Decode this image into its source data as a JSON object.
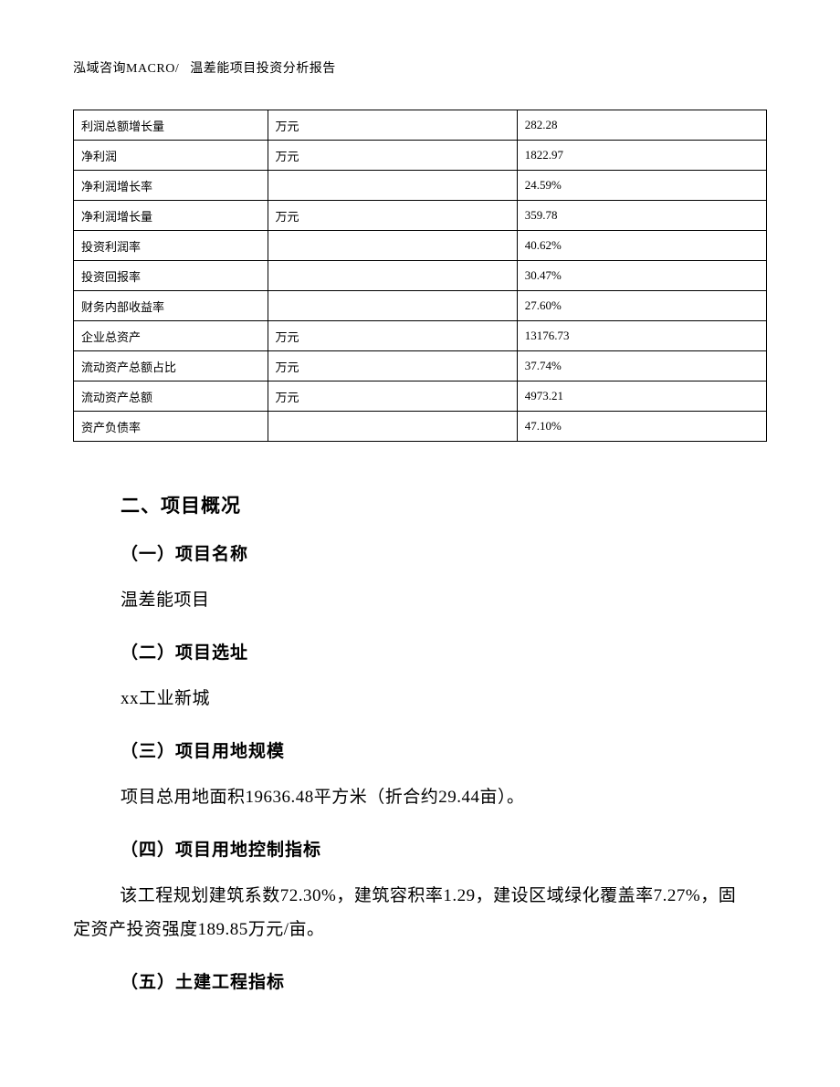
{
  "header": {
    "company": "泓域咨询MACRO/",
    "title": "温差能项目投资分析报告"
  },
  "table": {
    "columns": [
      "name",
      "unit",
      "value"
    ],
    "rows": [
      {
        "name": "利润总额增长量",
        "unit": "万元",
        "value": "282.28"
      },
      {
        "name": "净利润",
        "unit": "万元",
        "value": "1822.97"
      },
      {
        "name": "净利润增长率",
        "unit": "",
        "value": "24.59%"
      },
      {
        "name": "净利润增长量",
        "unit": "万元",
        "value": "359.78"
      },
      {
        "name": "投资利润率",
        "unit": "",
        "value": "40.62%"
      },
      {
        "name": "投资回报率",
        "unit": "",
        "value": "30.47%"
      },
      {
        "name": "财务内部收益率",
        "unit": "",
        "value": "27.60%"
      },
      {
        "name": "企业总资产",
        "unit": "万元",
        "value": "13176.73"
      },
      {
        "name": "流动资产总额占比",
        "unit": "万元",
        "value": "37.74%"
      },
      {
        "name": "流动资产总额",
        "unit": "万元",
        "value": "4973.21"
      },
      {
        "name": "资产负债率",
        "unit": "",
        "value": "47.10%"
      }
    ]
  },
  "section": {
    "title": "二、项目概况",
    "sub1": {
      "title": "（一）项目名称",
      "text": "温差能项目"
    },
    "sub2": {
      "title": "（二）项目选址",
      "text": "xx工业新城"
    },
    "sub3": {
      "title": "（三）项目用地规模",
      "text": "项目总用地面积19636.48平方米（折合约29.44亩）。"
    },
    "sub4": {
      "title": "（四）项目用地控制指标",
      "text": "该工程规划建筑系数72.30%，建筑容积率1.29，建设区域绿化覆盖率7.27%，固定资产投资强度189.85万元/亩。"
    },
    "sub5": {
      "title": "（五）土建工程指标"
    }
  },
  "styling": {
    "page_bg": "#ffffff",
    "text_color": "#000000",
    "border_color": "#000000",
    "header_fontsize": 14,
    "table_fontsize": 13,
    "section_title_fontsize": 21,
    "sub_title_fontsize": 19,
    "body_fontsize": 19,
    "line_height": 1.95,
    "table_col_widths": [
      "28%",
      "36%",
      "36%"
    ]
  }
}
